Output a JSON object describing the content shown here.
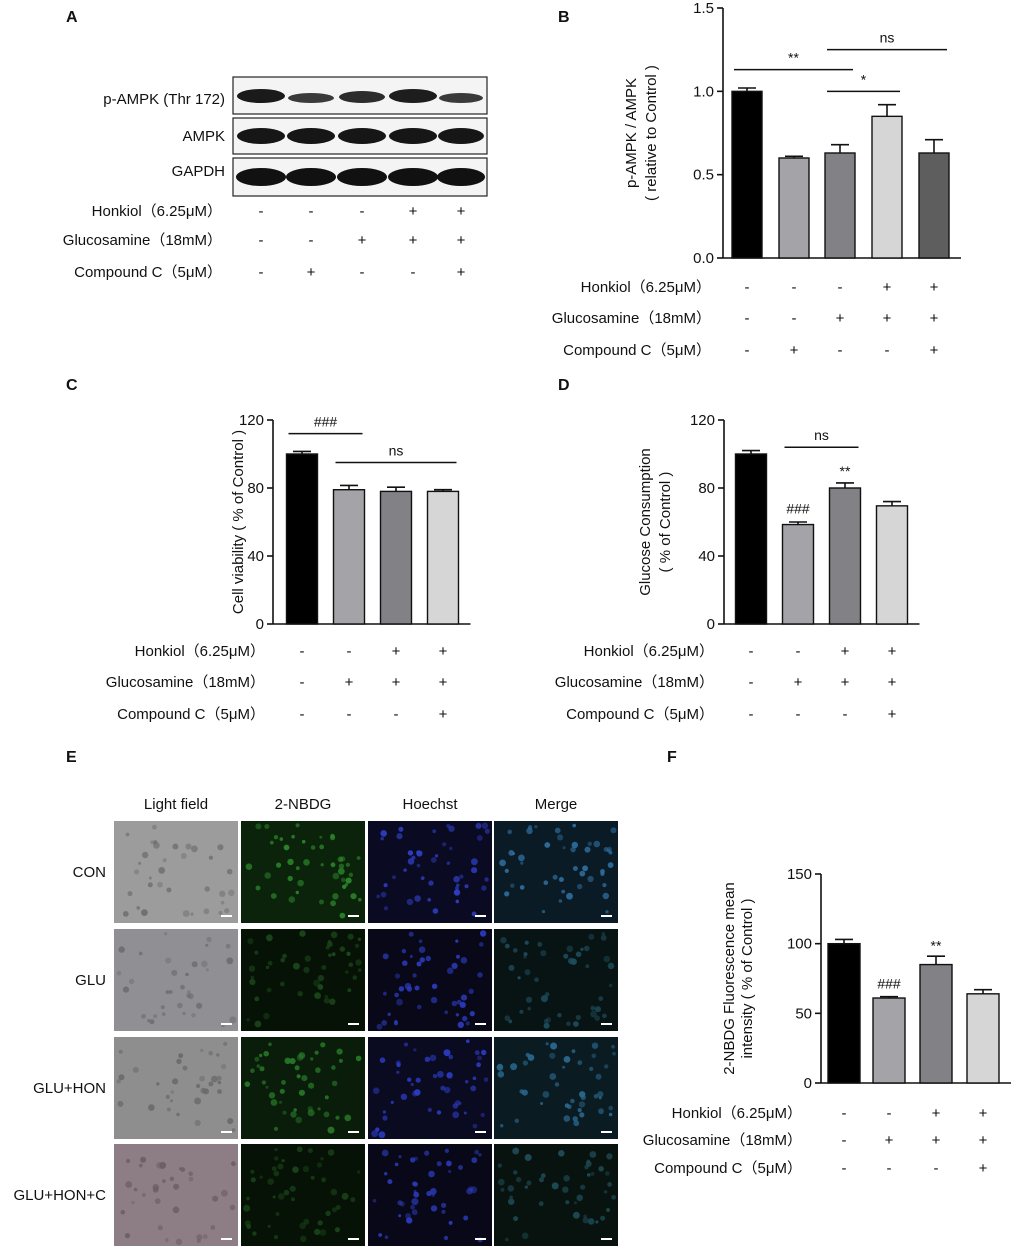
{
  "panels": {
    "a": {
      "label": "A",
      "bands": [
        "p-AMPK (Thr 172)",
        "AMPK",
        "GAPDH"
      ]
    },
    "e": {
      "label": "E",
      "columns": [
        "Light field",
        "2-NBDG",
        "Hoechst",
        "Merge"
      ],
      "rows": [
        "CON",
        "GLU",
        "GLU+HON",
        "GLU+HON+C"
      ]
    }
  },
  "blot_conditions": {
    "rows": [
      {
        "label": "Honkiol（6.25μM）",
        "signs": [
          "-",
          "-",
          "-",
          "+",
          "+"
        ]
      },
      {
        "label": "Glucosamine（18mM）",
        "signs": [
          "-",
          "-",
          "+",
          "+",
          "+"
        ]
      },
      {
        "label": "Compound C（5μM）",
        "signs": [
          "-",
          "+",
          "-",
          "-",
          "+"
        ]
      }
    ]
  },
  "bar_conditions": {
    "rows": [
      {
        "label": "Honkiol（6.25μM）",
        "signs": [
          "-",
          "-",
          "+",
          "+"
        ]
      },
      {
        "label": "Glucosamine（18mM）",
        "signs": [
          "-",
          "+",
          "+",
          "+"
        ]
      },
      {
        "label": "Compound C（5μM）",
        "signs": [
          "-",
          "-",
          "-",
          "+"
        ]
      }
    ]
  },
  "chart_data": [
    {
      "panel": "B",
      "type": "bar",
      "ylabel": [
        "p-AMPK / AMPK",
        "( relative to Control )"
      ],
      "ylim": [
        0,
        1.5
      ],
      "yticks": [
        "0.0",
        "0.5",
        "1.0",
        "1.5"
      ],
      "values": [
        1.0,
        0.6,
        0.63,
        0.85,
        0.63
      ],
      "errors": [
        0.02,
        0.01,
        0.05,
        0.07,
        0.08
      ],
      "colors": [
        "#000000",
        "#a3a3a8",
        "#818186",
        "#d6d6d6",
        "#5e5e5e"
      ],
      "annotations": [
        {
          "text": "**",
          "from": 0,
          "to": 2,
          "y": 1.13
        },
        {
          "text": "*",
          "from": 2,
          "to": 3,
          "y": 1.0
        },
        {
          "text": "ns",
          "from": 2,
          "to": 4,
          "y": 1.25
        }
      ],
      "bar_labels": []
    },
    {
      "panel": "C",
      "type": "bar",
      "ylabel": [
        "Cell viability ( % of Control )"
      ],
      "ylim": [
        0,
        120
      ],
      "yticks": [
        "0",
        "40",
        "80",
        "120"
      ],
      "values": [
        100,
        79,
        78,
        78
      ],
      "errors": [
        1.5,
        2.5,
        2.5,
        1.0
      ],
      "colors": [
        "#000000",
        "#a3a3a8",
        "#818186",
        "#d6d6d6"
      ],
      "annotations": [
        {
          "text": "###",
          "from": 0,
          "to": 1,
          "y": 112
        },
        {
          "text": "ns",
          "from": 1,
          "to": 3,
          "y": 95
        }
      ],
      "bar_labels": []
    },
    {
      "panel": "D",
      "type": "bar",
      "ylabel": [
        "Glucose Consumption",
        "( % of Control )"
      ],
      "ylim": [
        0,
        120
      ],
      "yticks": [
        "0",
        "40",
        "80",
        "120"
      ],
      "values": [
        100,
        58.5,
        80,
        69.5
      ],
      "errors": [
        2,
        1.5,
        3,
        2.5
      ],
      "colors": [
        "#000000",
        "#a3a3a8",
        "#818186",
        "#d6d6d6"
      ],
      "annotations": [
        {
          "text": "ns",
          "from": 1,
          "to": 2,
          "y": 104
        }
      ],
      "bar_labels": [
        {
          "text": "###",
          "index": 1,
          "y": 65
        },
        {
          "text": "**",
          "index": 2,
          "y": 87
        }
      ]
    },
    {
      "panel": "F",
      "type": "bar",
      "ylabel": [
        "2-NBDG Fluorescence mean",
        "intensity ( % of Control )"
      ],
      "ylim": [
        0,
        150
      ],
      "yticks": [
        "0",
        "50",
        "100",
        "150"
      ],
      "values": [
        100,
        61,
        85,
        64
      ],
      "errors": [
        3,
        1,
        6,
        3
      ],
      "colors": [
        "#000000",
        "#a3a3a8",
        "#818186",
        "#d6d6d6"
      ],
      "annotations": [],
      "bar_labels": [
        {
          "text": "###",
          "index": 1,
          "y": 68
        },
        {
          "text": "**",
          "index": 2,
          "y": 95
        }
      ]
    }
  ]
}
